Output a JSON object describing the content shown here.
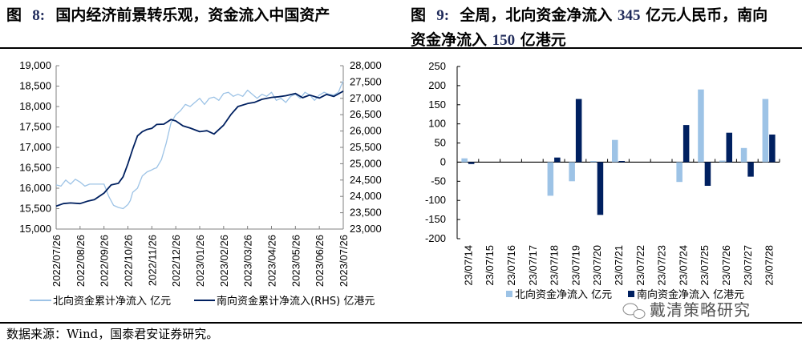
{
  "figure8": {
    "title_prefix": "图",
    "title_number": "8:",
    "title_text": "国内经济前景转乐观，资金流入中国资产"
  },
  "figure9": {
    "title_prefix": "图",
    "title_number": "9:",
    "title_text_a": "全周，北向资金净流入",
    "title_num_a": "345",
    "title_text_b": "亿元人民币，南向",
    "title_text_c": "资金净流入",
    "title_num_c": "150",
    "title_text_d": "亿港元"
  },
  "source": "数据来源：Wind，国泰君安证券研究。",
  "watermark": "戴清策略研究",
  "colors": {
    "north": "#9dc3e6",
    "south": "#002060",
    "axis": "#000000"
  },
  "chart_data": [
    {
      "type": "line",
      "title": "国内经济前景转乐观，资金流入中国资产",
      "x_tick_labels": [
        "2022/07/26",
        "2022/08/26",
        "2022/09/26",
        "2022/10/26",
        "2022/11/26",
        "2022/12/26",
        "2023/01/26",
        "2023/02/26",
        "2023/03/26",
        "2023/04/26",
        "2023/05/26",
        "2023/06/26",
        "2023/07/26"
      ],
      "y_left": {
        "ylim": [
          15000,
          19000
        ],
        "ticks": [
          "15,000",
          "15,500",
          "16,000",
          "16,500",
          "17,000",
          "17,500",
          "18,000",
          "18,500",
          "19,000"
        ]
      },
      "y_right": {
        "ylim": [
          23000,
          28000
        ],
        "ticks": [
          "23,000",
          "23,500",
          "24,000",
          "24,500",
          "25,000",
          "25,500",
          "26,000",
          "26,500",
          "27,000",
          "27,500",
          "28,000"
        ]
      },
      "series": [
        {
          "name": "北向资金累计净流入 亿元",
          "axis": "left",
          "x": [
            0,
            0.2,
            0.4,
            0.6,
            0.8,
            1.0,
            1.2,
            1.4,
            1.6,
            1.8,
            2.0,
            2.2,
            2.4,
            2.6,
            2.8,
            3.0,
            3.1,
            3.2,
            3.4,
            3.6,
            3.8,
            4.0,
            4.1,
            4.2,
            4.4,
            4.6,
            4.8,
            5.0,
            5.2,
            5.4,
            5.6,
            5.8,
            6.0,
            6.2,
            6.4,
            6.6,
            6.8,
            7.0,
            7.2,
            7.4,
            7.6,
            7.8,
            8.0,
            8.2,
            8.4,
            8.6,
            8.8,
            9.0,
            9.2,
            9.4,
            9.6,
            9.8,
            10.0,
            10.2,
            10.4,
            10.6,
            10.8,
            11.0,
            11.2,
            11.4,
            11.6,
            11.8,
            11.9,
            12.0
          ],
          "values": [
            16080,
            16050,
            16200,
            16100,
            16220,
            16150,
            16050,
            16100,
            16100,
            16100,
            16100,
            15800,
            15580,
            15530,
            15500,
            15600,
            15700,
            15900,
            16000,
            16300,
            16400,
            16450,
            16480,
            16500,
            16700,
            17100,
            17600,
            17800,
            17900,
            18050,
            18000,
            18100,
            18200,
            18050,
            18200,
            18230,
            18150,
            18320,
            18350,
            18250,
            18300,
            18250,
            18400,
            18300,
            18200,
            18300,
            18250,
            18350,
            18150,
            18200,
            18100,
            18250,
            18300,
            18200,
            18350,
            18280,
            18150,
            18280,
            18350,
            18300,
            18280,
            18350,
            18500,
            18620
          ]
        },
        {
          "name": "南向资金累计净流入(RHS) 亿港元",
          "axis": "right",
          "x": [
            0,
            0.3,
            0.6,
            1.0,
            1.3,
            1.6,
            2.0,
            2.3,
            2.6,
            2.8,
            3.0,
            3.2,
            3.4,
            3.6,
            3.8,
            4.0,
            4.2,
            4.5,
            4.8,
            5.0,
            5.3,
            5.6,
            6.0,
            6.3,
            6.6,
            7.0,
            7.3,
            7.6,
            8.0,
            8.3,
            8.6,
            9.0,
            9.3,
            9.6,
            10.0,
            10.3,
            10.6,
            11.0,
            11.3,
            11.6,
            11.9,
            12.0
          ],
          "values": [
            23700,
            23780,
            23800,
            23780,
            23850,
            23900,
            24100,
            24350,
            24400,
            24600,
            25000,
            25450,
            25850,
            25980,
            26050,
            26080,
            26200,
            26210,
            26350,
            26310,
            26160,
            26090,
            25980,
            26010,
            25910,
            26180,
            26500,
            26750,
            26840,
            26880,
            26970,
            27030,
            27050,
            27080,
            27150,
            27020,
            27100,
            27010,
            27120,
            27060,
            27180,
            27220
          ]
        }
      ],
      "legend": "bottom"
    },
    {
      "type": "bar",
      "title": "全周，北向资金净流入345亿元人民币，南向资金净流入150亿港元",
      "categories": [
        "23/07/14",
        "23/07/15",
        "23/07/16",
        "23/07/17",
        "23/07/18",
        "23/07/19",
        "23/07/20",
        "23/07/21",
        "23/07/22",
        "23/07/23",
        "23/07/24",
        "23/07/25",
        "23/07/26",
        "23/07/27",
        "23/07/28"
      ],
      "ylim": [
        -200,
        250
      ],
      "y_ticks": [
        "250",
        "200",
        "150",
        "100",
        "50",
        "0",
        "-50",
        "-100",
        "-150",
        "-200"
      ],
      "series": [
        {
          "name": "北向资金净流入 亿元",
          "values": [
            10,
            0,
            0,
            0,
            -88,
            -50,
            3,
            58,
            0,
            0,
            -52,
            190,
            4,
            37,
            165
          ]
        },
        {
          "name": "南向资金净流入 亿港元",
          "values": [
            -5,
            0,
            0,
            0,
            12,
            165,
            -138,
            3,
            0,
            0,
            97,
            -62,
            77,
            -38,
            72
          ]
        }
      ],
      "legend": "bottom"
    }
  ]
}
